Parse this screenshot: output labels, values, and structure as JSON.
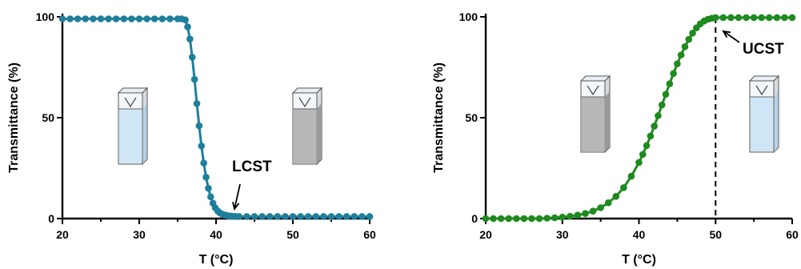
{
  "chart_data": [
    {
      "type": "line",
      "xlabel": "T (°C)",
      "ylabel": "Transmittance (%)",
      "xlim": [
        20,
        60
      ],
      "ylim": [
        0,
        100
      ],
      "xticks": [
        "20",
        "30",
        "40",
        "50",
        "60"
      ],
      "yticks": [
        "0",
        "50",
        "100"
      ],
      "annotation": "LCST",
      "series": [
        {
          "color": "#1f7f9a",
          "x": [
            20,
            21,
            22,
            23,
            24,
            25,
            26,
            27,
            28,
            29,
            30,
            31,
            32,
            33,
            34,
            35,
            35.5,
            36,
            36.3,
            36.6,
            36.9,
            37.2,
            37.5,
            37.8,
            38.1,
            38.4,
            38.7,
            39,
            39.3,
            39.6,
            39.9,
            40.2,
            40.5,
            40.8,
            41.1,
            41.4,
            41.7,
            42,
            42.5,
            43,
            44,
            45,
            46,
            47,
            48,
            49,
            50,
            51,
            52,
            53,
            54,
            55,
            56,
            57,
            58,
            59,
            60
          ],
          "y": [
            99,
            99,
            99,
            99,
            99,
            99,
            99,
            99,
            99,
            99,
            99,
            99,
            99,
            99,
            99,
            99,
            99,
            98.5,
            95,
            89,
            80,
            69,
            57,
            46,
            36,
            27.5,
            20.5,
            15,
            10.8,
            7.6,
            5.3,
            3.8,
            2.8,
            2.2,
            1.8,
            1.5,
            1.3,
            1.2,
            1.1,
            1,
            1,
            1,
            1,
            1,
            1,
            1,
            1,
            1,
            1,
            1,
            1,
            1,
            1,
            1,
            1,
            1,
            1
          ]
        }
      ],
      "cuvettes": [
        {
          "state": "clear",
          "fill": "#cfe6f7"
        },
        {
          "state": "turbid",
          "fill": "#b7b7b7"
        }
      ]
    },
    {
      "type": "line",
      "xlabel": "T (°C)",
      "ylabel": "Transmittance (%)",
      "xlim": [
        20,
        60
      ],
      "ylim": [
        0,
        100
      ],
      "xticks": [
        "20",
        "30",
        "40",
        "50",
        "60"
      ],
      "yticks": [
        "0",
        "50",
        "100"
      ],
      "annotation": "UCST",
      "vline_x": 50,
      "series": [
        {
          "color": "#1f8a1f",
          "x": [
            20,
            21,
            22,
            23,
            24,
            25,
            26,
            27,
            28,
            29,
            30,
            31,
            32,
            33,
            34,
            35,
            36,
            37,
            38,
            39,
            40,
            40.5,
            41,
            41.5,
            42,
            42.5,
            43,
            43.5,
            44,
            44.5,
            45,
            45.5,
            46,
            46.5,
            47,
            47.5,
            48,
            48.5,
            49,
            49.5,
            50,
            51,
            52,
            53,
            54,
            55,
            56,
            57,
            58,
            59,
            60
          ],
          "y": [
            0,
            0,
            0,
            0,
            0,
            0,
            0,
            0,
            0.2,
            0.4,
            0.7,
            1.1,
            1.7,
            2.5,
            3.7,
            5.4,
            7.8,
            11,
            15.3,
            21,
            27.8,
            31.8,
            36.2,
            40.9,
            45.8,
            51,
            56.3,
            61.6,
            66.8,
            71.9,
            76.7,
            81.1,
            85.2,
            88.8,
            91.9,
            94.5,
            96.5,
            97.9,
            98.8,
            99.3,
            99.6,
            99.6,
            99.6,
            99.6,
            99.6,
            99.6,
            99.6,
            99.6,
            99.6,
            99.6,
            99.6
          ]
        }
      ],
      "cuvettes": [
        {
          "state": "turbid",
          "fill": "#b7b7b7"
        },
        {
          "state": "clear",
          "fill": "#cfe6f7"
        }
      ]
    }
  ]
}
